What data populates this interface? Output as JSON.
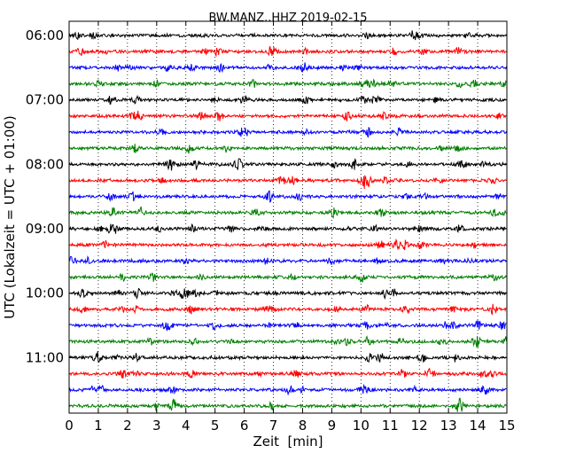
{
  "chart_data": {
    "type": "line",
    "title": "BW.MANZ..HHZ 2019-02-15",
    "xlabel": "Zeit  [min]",
    "ylabel": "UTC (Lokalzeit = UTC + 01:00)",
    "xlim": [
      0,
      15
    ],
    "x_ticks": [
      "0",
      "1",
      "2",
      "3",
      "4",
      "5",
      "6",
      "7",
      "8",
      "9",
      "10",
      "11",
      "12",
      "13",
      "14",
      "15"
    ],
    "y_tick_labels": [
      "06:00",
      "07:00",
      "08:00",
      "09:00",
      "10:00",
      "11:00"
    ],
    "trace_start": "06:00",
    "trace_interval_min": 15,
    "trace_count": 24,
    "trace_colors": [
      "#000000",
      "#ff0000",
      "#0000ff",
      "#007f00"
    ],
    "grid_x": true,
    "grid_style": "dotted"
  }
}
